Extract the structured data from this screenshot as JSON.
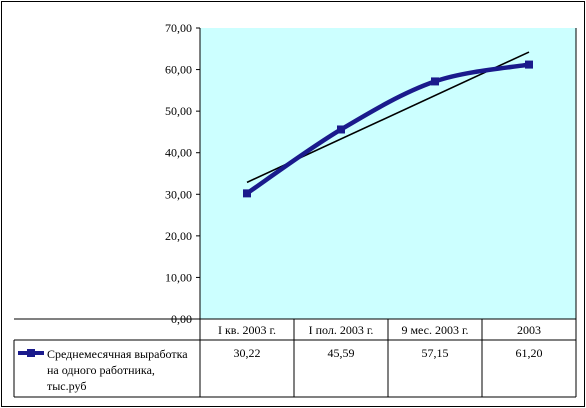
{
  "chart_data": {
    "type": "line",
    "categories": [
      "I кв. 2003 г.",
      "I пол. 2003 г.",
      "9 мес. 2003 г.",
      "2003"
    ],
    "series": [
      {
        "name": "Среднемесячная выработка на одного работника, тыс.руб",
        "values": [
          30.22,
          45.59,
          57.15,
          61.2
        ],
        "value_labels": [
          "30,22",
          "45,59",
          "57,15",
          "61,20"
        ],
        "color": "#1a1a8c",
        "marker": "square",
        "smooth": true
      }
    ],
    "trendline": {
      "type": "linear",
      "color": "#000000"
    },
    "y_ticks": [
      "0,00",
      "10,00",
      "20,00",
      "30,00",
      "40,00",
      "50,00",
      "60,00",
      "70,00"
    ],
    "ylim": [
      0,
      70
    ],
    "grid": false,
    "plot_background": "#ccffff",
    "data_table": true,
    "legend_position": "data-table-left"
  }
}
